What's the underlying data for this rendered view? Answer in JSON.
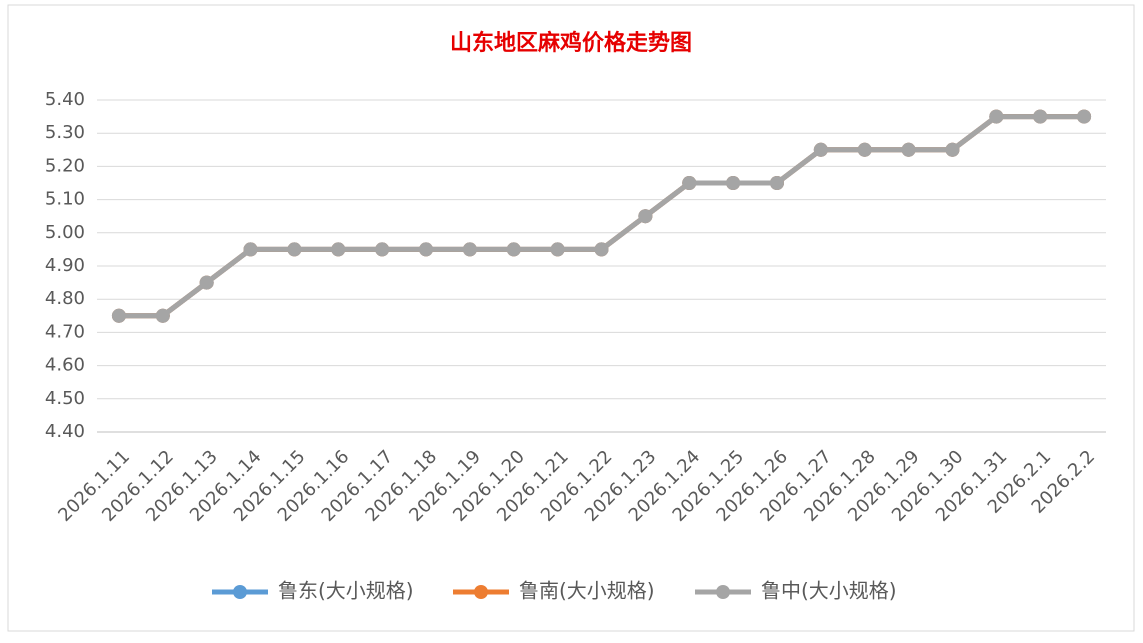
{
  "chart_data": {
    "type": "line",
    "title": "山东地区麻鸡价格走势图",
    "categories": [
      "2026.1.11",
      "2026.1.12",
      "2026.1.13",
      "2026.1.14",
      "2026.1.15",
      "2026.1.16",
      "2026.1.17",
      "2026.1.18",
      "2026.1.19",
      "2026.1.20",
      "2026.1.21",
      "2026.1.22",
      "2026.1.23",
      "2026.1.24",
      "2026.1.25",
      "2026.1.26",
      "2026.1.27",
      "2026.1.28",
      "2026.1.29",
      "2026.1.30",
      "2026.1.31",
      "2026.2.1",
      "2026.2.2"
    ],
    "series": [
      {
        "name": "鲁东(大小规格)",
        "color": "#5b9bd5",
        "values": [
          4.75,
          4.75,
          4.85,
          4.95,
          4.95,
          4.95,
          4.95,
          4.95,
          4.95,
          4.95,
          4.95,
          4.95,
          5.05,
          5.15,
          5.15,
          5.15,
          5.25,
          5.25,
          5.25,
          5.25,
          5.35,
          5.35,
          5.35
        ]
      },
      {
        "name": "鲁南(大小规格)",
        "color": "#ed7d31",
        "values": [
          4.75,
          4.75,
          4.85,
          4.95,
          4.95,
          4.95,
          4.95,
          4.95,
          4.95,
          4.95,
          4.95,
          4.95,
          5.05,
          5.15,
          5.15,
          5.15,
          5.25,
          5.25,
          5.25,
          5.25,
          5.35,
          5.35,
          5.35
        ]
      },
      {
        "name": "鲁中(大小规格)",
        "color": "#a5a5a5",
        "values": [
          4.75,
          4.75,
          4.85,
          4.95,
          4.95,
          4.95,
          4.95,
          4.95,
          4.95,
          4.95,
          4.95,
          4.95,
          5.05,
          5.15,
          5.15,
          5.15,
          5.25,
          5.25,
          5.25,
          5.25,
          5.35,
          5.35,
          5.35
        ]
      }
    ],
    "ylim": [
      4.4,
      5.4
    ],
    "yticks": [
      {
        "value": 4.4,
        "label": "4.40"
      },
      {
        "value": 4.5,
        "label": "4.50"
      },
      {
        "value": 4.6,
        "label": "4.60"
      },
      {
        "value": 4.7,
        "label": "4.70"
      },
      {
        "value": 4.8,
        "label": "4.80"
      },
      {
        "value": 4.9,
        "label": "4.90"
      },
      {
        "value": 5.0,
        "label": "5.00"
      },
      {
        "value": 5.1,
        "label": "5.10"
      },
      {
        "value": 5.2,
        "label": "5.20"
      },
      {
        "value": 5.3,
        "label": "5.30"
      },
      {
        "value": 5.4,
        "label": "5.40"
      }
    ],
    "grid": true,
    "legend": "bottom"
  }
}
